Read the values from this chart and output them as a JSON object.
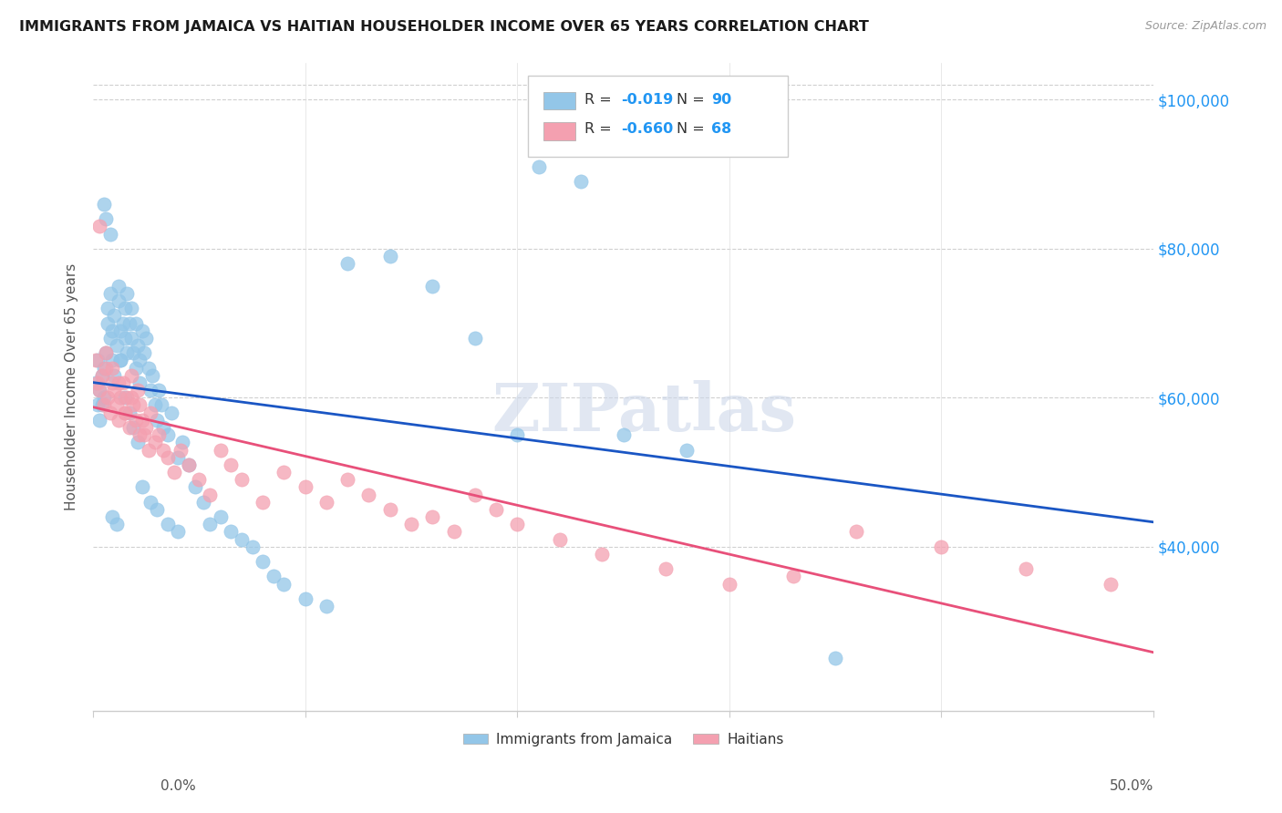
{
  "title": "IMMIGRANTS FROM JAMAICA VS HAITIAN HOUSEHOLDER INCOME OVER 65 YEARS CORRELATION CHART",
  "source": "Source: ZipAtlas.com",
  "ylabel": "Householder Income Over 65 years",
  "legend_jamaica": "Immigrants from Jamaica",
  "legend_haitians": "Haitians",
  "r_jamaica": "-0.019",
  "n_jamaica": "90",
  "r_haitians": "-0.660",
  "n_haitians": "68",
  "color_jamaica": "#93c6e8",
  "color_haitians": "#f4a0b0",
  "line_color_jamaica": "#1a56c4",
  "line_color_haitians": "#e8507a",
  "watermark": "ZIPatlas",
  "xmin": 0.0,
  "xmax": 0.5,
  "ymin": 18000,
  "ymax": 105000,
  "yticks": [
    40000,
    60000,
    80000,
    100000
  ],
  "ytick_labels": [
    "$40,000",
    "$60,000",
    "$80,000",
    "$100,000"
  ],
  "jamaica_x": [
    0.001,
    0.002,
    0.002,
    0.003,
    0.003,
    0.004,
    0.004,
    0.005,
    0.005,
    0.006,
    0.007,
    0.007,
    0.008,
    0.008,
    0.009,
    0.009,
    0.01,
    0.01,
    0.011,
    0.012,
    0.012,
    0.013,
    0.013,
    0.014,
    0.015,
    0.015,
    0.016,
    0.016,
    0.017,
    0.018,
    0.018,
    0.019,
    0.02,
    0.02,
    0.021,
    0.022,
    0.022,
    0.023,
    0.024,
    0.025,
    0.026,
    0.027,
    0.028,
    0.029,
    0.03,
    0.031,
    0.032,
    0.033,
    0.035,
    0.037,
    0.04,
    0.042,
    0.045,
    0.048,
    0.052,
    0.055,
    0.06,
    0.065,
    0.07,
    0.075,
    0.08,
    0.085,
    0.09,
    0.1,
    0.11,
    0.12,
    0.14,
    0.16,
    0.18,
    0.2,
    0.21,
    0.23,
    0.25,
    0.28,
    0.005,
    0.006,
    0.008,
    0.009,
    0.011,
    0.013,
    0.015,
    0.017,
    0.019,
    0.021,
    0.023,
    0.027,
    0.03,
    0.035,
    0.04,
    0.35
  ],
  "jamaica_y": [
    62000,
    59000,
    65000,
    61000,
    57000,
    63000,
    59000,
    60000,
    64000,
    66000,
    70000,
    72000,
    68000,
    74000,
    65000,
    69000,
    71000,
    63000,
    67000,
    73000,
    75000,
    69000,
    65000,
    70000,
    72000,
    68000,
    66000,
    74000,
    70000,
    72000,
    68000,
    66000,
    64000,
    70000,
    67000,
    65000,
    62000,
    69000,
    66000,
    68000,
    64000,
    61000,
    63000,
    59000,
    57000,
    61000,
    59000,
    56000,
    55000,
    58000,
    52000,
    54000,
    51000,
    48000,
    46000,
    43000,
    44000,
    42000,
    41000,
    40000,
    38000,
    36000,
    35000,
    33000,
    32000,
    78000,
    79000,
    75000,
    68000,
    55000,
    91000,
    89000,
    55000,
    53000,
    86000,
    84000,
    82000,
    44000,
    43000,
    65000,
    60000,
    58000,
    56000,
    54000,
    48000,
    46000,
    45000,
    43000,
    42000,
    25000
  ],
  "haiti_x": [
    0.001,
    0.002,
    0.003,
    0.004,
    0.005,
    0.006,
    0.007,
    0.008,
    0.009,
    0.01,
    0.011,
    0.012,
    0.013,
    0.014,
    0.015,
    0.016,
    0.017,
    0.018,
    0.019,
    0.02,
    0.021,
    0.022,
    0.023,
    0.024,
    0.025,
    0.027,
    0.029,
    0.031,
    0.033,
    0.035,
    0.038,
    0.041,
    0.045,
    0.05,
    0.055,
    0.06,
    0.065,
    0.07,
    0.08,
    0.09,
    0.1,
    0.11,
    0.12,
    0.13,
    0.14,
    0.15,
    0.16,
    0.17,
    0.18,
    0.19,
    0.2,
    0.22,
    0.24,
    0.27,
    0.3,
    0.33,
    0.36,
    0.4,
    0.44,
    0.48,
    0.003,
    0.006,
    0.009,
    0.012,
    0.015,
    0.018,
    0.022,
    0.026
  ],
  "haiti_y": [
    65000,
    62000,
    61000,
    63000,
    59000,
    64000,
    60000,
    58000,
    62000,
    61000,
    59000,
    57000,
    60000,
    62000,
    58000,
    60000,
    56000,
    63000,
    59000,
    57000,
    61000,
    59000,
    57000,
    55000,
    56000,
    58000,
    54000,
    55000,
    53000,
    52000,
    50000,
    53000,
    51000,
    49000,
    47000,
    53000,
    51000,
    49000,
    46000,
    50000,
    48000,
    46000,
    49000,
    47000,
    45000,
    43000,
    44000,
    42000,
    47000,
    45000,
    43000,
    41000,
    39000,
    37000,
    35000,
    36000,
    42000,
    40000,
    37000,
    35000,
    83000,
    66000,
    64000,
    62000,
    58000,
    60000,
    55000,
    53000
  ]
}
